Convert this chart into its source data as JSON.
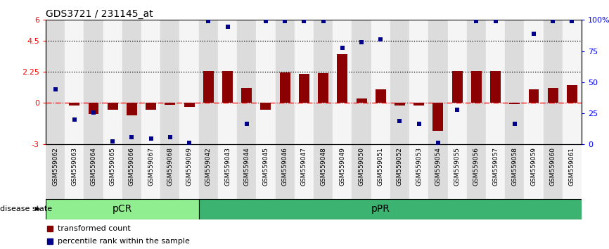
{
  "title": "GDS3721 / 231145_at",
  "samples": [
    "GSM559062",
    "GSM559063",
    "GSM559064",
    "GSM559065",
    "GSM559066",
    "GSM559067",
    "GSM559068",
    "GSM559069",
    "GSM559042",
    "GSM559043",
    "GSM559044",
    "GSM559045",
    "GSM559046",
    "GSM559047",
    "GSM559048",
    "GSM559049",
    "GSM559050",
    "GSM559051",
    "GSM559052",
    "GSM559053",
    "GSM559054",
    "GSM559055",
    "GSM559056",
    "GSM559057",
    "GSM559058",
    "GSM559059",
    "GSM559060",
    "GSM559061"
  ],
  "bar_values": [
    0.0,
    -0.2,
    -0.8,
    -0.5,
    -0.9,
    -0.5,
    -0.15,
    -0.3,
    2.3,
    2.3,
    1.1,
    -0.5,
    2.2,
    2.1,
    2.15,
    3.5,
    0.3,
    1.0,
    -0.2,
    -0.2,
    -2.0,
    2.3,
    2.3,
    2.3,
    -0.1,
    1.0,
    1.1,
    1.3
  ],
  "dot_values_left": [
    1.0,
    -1.2,
    -0.7,
    -2.8,
    -2.5,
    -2.6,
    -2.5,
    -2.9,
    5.9,
    5.5,
    -1.5,
    5.9,
    5.9,
    5.9,
    5.9,
    4.0,
    4.4,
    4.6,
    -1.3,
    -1.5,
    -2.9,
    -0.5,
    5.9,
    5.9,
    -1.5,
    5.0,
    5.9,
    5.9
  ],
  "group1_label": "pCR",
  "group2_label": "pPR",
  "group1_count": 8,
  "group2_count": 20,
  "group1_color": "#90EE90",
  "group2_color": "#3CB371",
  "bar_color": "#8B0000",
  "dot_color": "#00008B",
  "ylim_left": [
    -3,
    6
  ],
  "ylim_right": [
    0,
    100
  ],
  "yticks_left": [
    -3,
    0,
    2.25,
    4.5,
    6
  ],
  "yticks_left_labels": [
    "-3",
    "0",
    "2.25",
    "4.5",
    "6"
  ],
  "yticks_right": [
    0,
    25,
    50,
    75,
    100
  ],
  "yticks_right_labels": [
    "0",
    "25",
    "50",
    "75",
    "100%"
  ],
  "disease_state_label": "disease state",
  "legend_items": [
    "transformed count",
    "percentile rank within the sample"
  ]
}
